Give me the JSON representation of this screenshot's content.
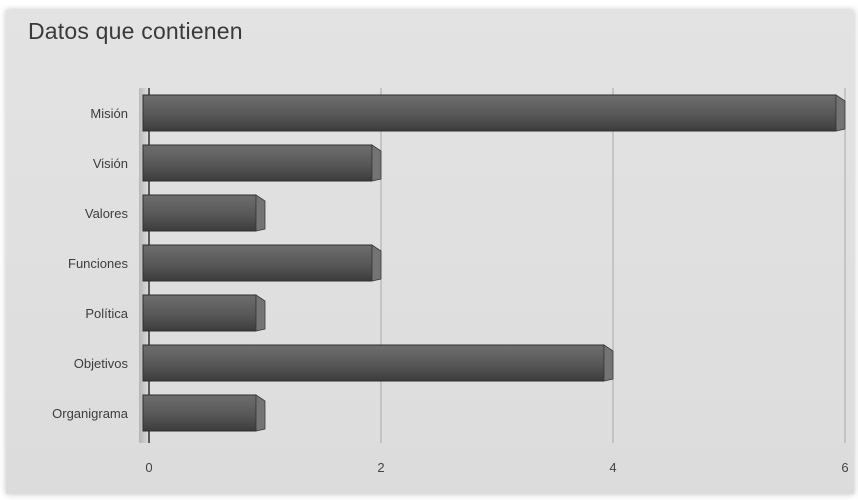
{
  "chart_data": {
    "type": "bar",
    "orientation": "horizontal",
    "title": "Datos que contienen",
    "categories": [
      "Misión",
      "Visión",
      "Valores",
      "Funciones",
      "Política",
      "Objetivos",
      "Organigrama"
    ],
    "values": [
      6,
      2,
      1,
      2,
      1,
      4,
      1
    ],
    "xlim": [
      0,
      6
    ],
    "xticks": [
      0,
      2,
      4,
      6
    ],
    "grid": true,
    "bar_color": "#585858",
    "style": "3d"
  }
}
